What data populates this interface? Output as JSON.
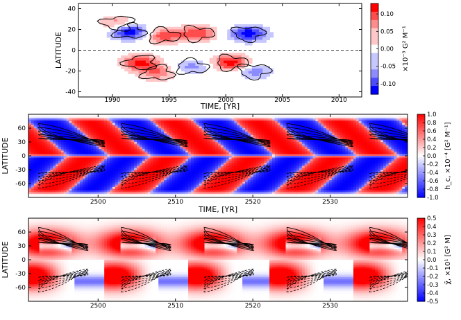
{
  "chart_data": [
    {
      "type": "heatmap",
      "title": "",
      "xlabel": "TIME, [YR]",
      "ylabel": "LATITUDE",
      "xlim": [
        1987,
        2012
      ],
      "ylim": [
        -45,
        45
      ],
      "xticks": [
        "1990",
        "1995",
        "2000",
        "2005",
        "2010"
      ],
      "yticks": [
        "40",
        "20",
        "0",
        "-20",
        "-40"
      ],
      "colorbar": {
        "label": "×10⁻³ G² M⁻¹",
        "range": [
          -0.13,
          0.13
        ],
        "ticks": [
          "0.10",
          "0.05",
          "0.00",
          "-0.05",
          "-0.10"
        ],
        "colormap": "bwr-discrete"
      },
      "equator_line": "dashed",
      "blobs": [
        {
          "t": 1991.5,
          "lat": 18,
          "sign": -1,
          "amp": 0.12
        },
        {
          "t": 1994.5,
          "lat": 14,
          "sign": 1,
          "amp": 0.08
        },
        {
          "t": 1997.5,
          "lat": 16,
          "sign": 1,
          "amp": 0.09
        },
        {
          "t": 2002.0,
          "lat": 16,
          "sign": -1,
          "amp": 0.11
        },
        {
          "t": 1990.5,
          "lat": 26,
          "sign": 1,
          "amp": 0.06
        },
        {
          "t": 1992.5,
          "lat": -12,
          "sign": 1,
          "amp": 0.1
        },
        {
          "t": 1994.0,
          "lat": -22,
          "sign": 1,
          "amp": 0.06
        },
        {
          "t": 1997.0,
          "lat": -16,
          "sign": -1,
          "amp": 0.05
        },
        {
          "t": 2000.5,
          "lat": -12,
          "sign": 1,
          "amp": 0.11
        },
        {
          "t": 2002.5,
          "lat": -20,
          "sign": -1,
          "amp": 0.06
        }
      ]
    },
    {
      "type": "heatmap",
      "title": "",
      "xlabel": "TIME, [YR]",
      "ylabel": "LATITUDE",
      "xlim": [
        2491,
        2540
      ],
      "ylim": [
        -90,
        90
      ],
      "xticks": [
        "2500",
        "2510",
        "2520",
        "2530"
      ],
      "yticks": [
        "60",
        "30",
        "0",
        "-30",
        "-60"
      ],
      "colorbar": {
        "label": "h_c, ×10⁻⁴ [G² M⁻¹]",
        "range": [
          -1.0,
          1.0
        ],
        "ticks": [
          "1.0",
          "0.8",
          "0.6",
          "0.4",
          "0.2",
          "0.0",
          "-0.2",
          "-0.4",
          "-0.6",
          "-0.8",
          "-1.0"
        ],
        "colormap": "bwr"
      },
      "cycle_period_yr": 10.7,
      "cycle_phase_yr": 2490.7
    },
    {
      "type": "heatmap",
      "title": "",
      "xlabel": "",
      "ylabel": "LATITUDE",
      "xlim": [
        2491,
        2540
      ],
      "ylim": [
        -90,
        90
      ],
      "xticks": [
        "2500",
        "2510",
        "2520",
        "2530"
      ],
      "yticks": [
        "60",
        "30",
        "0",
        "-30",
        "-60"
      ],
      "colorbar": {
        "label": "χ̄, ×10¹ [G² M]",
        "range": [
          -0.5,
          0.5
        ],
        "ticks": [
          "0.5",
          "0.4",
          "0.3",
          "0.2",
          "0.1",
          "0.0",
          "-0.1",
          "-0.2",
          "-0.3",
          "-0.4",
          "-0.5"
        ],
        "colormap": "bwr"
      },
      "cycle_period_yr": 10.7,
      "cycle_phase_yr": 2490.7
    }
  ]
}
